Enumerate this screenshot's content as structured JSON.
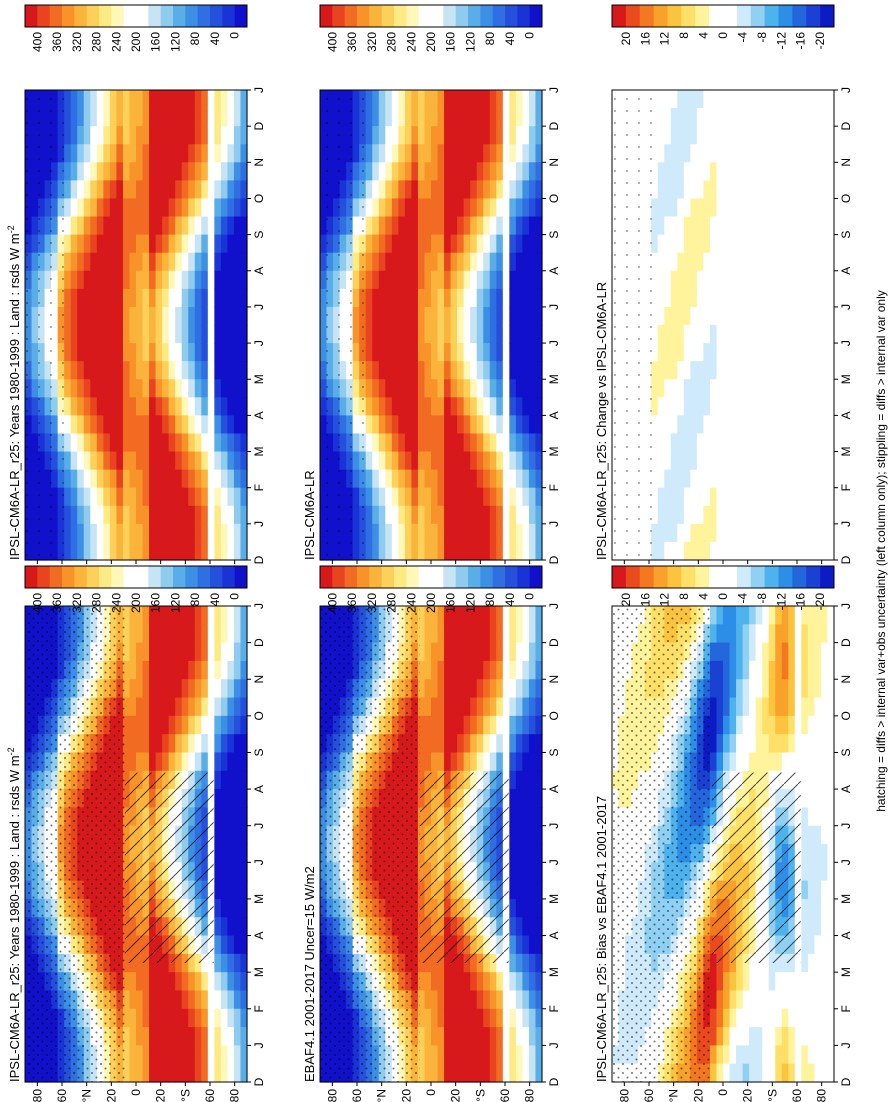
{
  "footnote": "hatching = diffs > internal var+obs uncertainty (left column only); stippling = diffs > internal var only",
  "chart_data": [
    {
      "type": "heatmap",
      "title": "IPSL-CM6A-LR_r25: Years 1980-1999 : Land : rsds W m",
      "title_sup": "-2",
      "months": [
        "D",
        "J",
        "F",
        "M",
        "A",
        "M",
        "J",
        "J",
        "A",
        "S",
        "O",
        "N",
        "D",
        "J"
      ],
      "lat_ticks": [
        "80",
        "60",
        "°N",
        "20",
        "0",
        "20",
        "°S",
        "60",
        "80"
      ],
      "colorbar": {
        "labels": [
          "400",
          "360",
          "320",
          "280",
          "240",
          "200",
          "160",
          "120",
          "80",
          "40",
          "0"
        ],
        "range": [
          0,
          400
        ]
      },
      "hatching": true
    },
    {
      "type": "heatmap",
      "title": "IPSL-CM6A-LR_r25: Years 1980-1999 : Land : rsds W m",
      "title_sup": "-2",
      "months": [
        "D",
        "J",
        "F",
        "M",
        "A",
        "M",
        "J",
        "J",
        "A",
        "S",
        "O",
        "N",
        "D",
        "J"
      ],
      "lat_ticks": [
        "80",
        "60",
        "°N",
        "20",
        "0",
        "20",
        "°S",
        "60",
        "80"
      ],
      "colorbar": {
        "labels": [
          "400",
          "360",
          "320",
          "280",
          "240",
          "200",
          "160",
          "120",
          "80",
          "40",
          "0"
        ],
        "range": [
          0,
          400
        ]
      },
      "hatching": false
    },
    {
      "type": "heatmap",
      "title": "EBAF4.1 2001-2017 Uncer=15 W/m2",
      "months": [
        "D",
        "J",
        "F",
        "M",
        "A",
        "M",
        "J",
        "J",
        "A",
        "S",
        "O",
        "N",
        "D",
        "J"
      ],
      "lat_ticks": [
        "80",
        "60",
        "°N",
        "20",
        "0",
        "20",
        "°S",
        "60",
        "80"
      ],
      "colorbar": {
        "labels": [
          "400",
          "360",
          "320",
          "280",
          "240",
          "200",
          "160",
          "120",
          "80",
          "40",
          "0"
        ],
        "range": [
          0,
          400
        ]
      },
      "hatching": true
    },
    {
      "type": "heatmap",
      "title": "IPSL-CM6A-LR",
      "months": [
        "D",
        "J",
        "F",
        "M",
        "A",
        "M",
        "J",
        "J",
        "A",
        "S",
        "O",
        "N",
        "D",
        "J"
      ],
      "lat_ticks": [
        "80",
        "60",
        "°N",
        "20",
        "0",
        "20",
        "°S",
        "60",
        "80"
      ],
      "colorbar": {
        "labels": [
          "400",
          "360",
          "320",
          "280",
          "240",
          "200",
          "160",
          "120",
          "80",
          "40",
          "0"
        ],
        "range": [
          0,
          400
        ]
      },
      "hatching": false
    },
    {
      "type": "heatmap",
      "title": "IPSL-CM6A-LR_r25: Bias vs EBAF4.1 2001-2017",
      "months": [
        "D",
        "J",
        "F",
        "M",
        "A",
        "M",
        "J",
        "J",
        "A",
        "S",
        "O",
        "N",
        "D",
        "J"
      ],
      "lat_ticks": [
        "80",
        "60",
        "°N",
        "20",
        "0",
        "20",
        "°S",
        "60",
        "80"
      ],
      "colorbar": {
        "labels": [
          "20",
          "16",
          "12",
          "8",
          "4",
          "0",
          "-4",
          "-8",
          "-12",
          "-16",
          "-20"
        ],
        "range": [
          -20,
          20
        ]
      },
      "hatching": true
    },
    {
      "type": "heatmap",
      "title": "IPSL-CM6A-LR_r25: Change vs IPSL-CM6A-LR",
      "months": [
        "D",
        "J",
        "F",
        "M",
        "A",
        "M",
        "J",
        "J",
        "A",
        "S",
        "O",
        "N",
        "D",
        "J"
      ],
      "lat_ticks": [
        "80",
        "60",
        "°N",
        "20",
        "0",
        "20",
        "°S",
        "60",
        "80"
      ],
      "colorbar": {
        "labels": [
          "20",
          "16",
          "12",
          "8",
          "4",
          "0",
          "-4",
          "-8",
          "-12",
          "-16",
          "-20"
        ],
        "range": [
          -20,
          20
        ]
      },
      "hatching": false
    }
  ],
  "colors": {
    "abs_scale": [
      "#d7191c",
      "#e8441f",
      "#f26b22",
      "#f8932a",
      "#fbb43b",
      "#fdd05a",
      "#feea82",
      "#fff8b8",
      "#ffffff",
      "#ffffff",
      "#c6e4f4",
      "#8fcbef",
      "#5aaee8",
      "#3d8fe6",
      "#2f6fe2",
      "#2550dc",
      "#1a33d6",
      "#1111cc"
    ],
    "diff_scale": [
      "#d7191c",
      "#ea4b1e",
      "#f4781f",
      "#f9a22b",
      "#fcc33f",
      "#fee068",
      "#fff49b",
      "#ffffff",
      "#ffffff",
      "#cfeafa",
      "#8fd0f3",
      "#4eb2ec",
      "#2c8ee6",
      "#2467dd",
      "#1a40d4",
      "#0d1bc4"
    ]
  }
}
